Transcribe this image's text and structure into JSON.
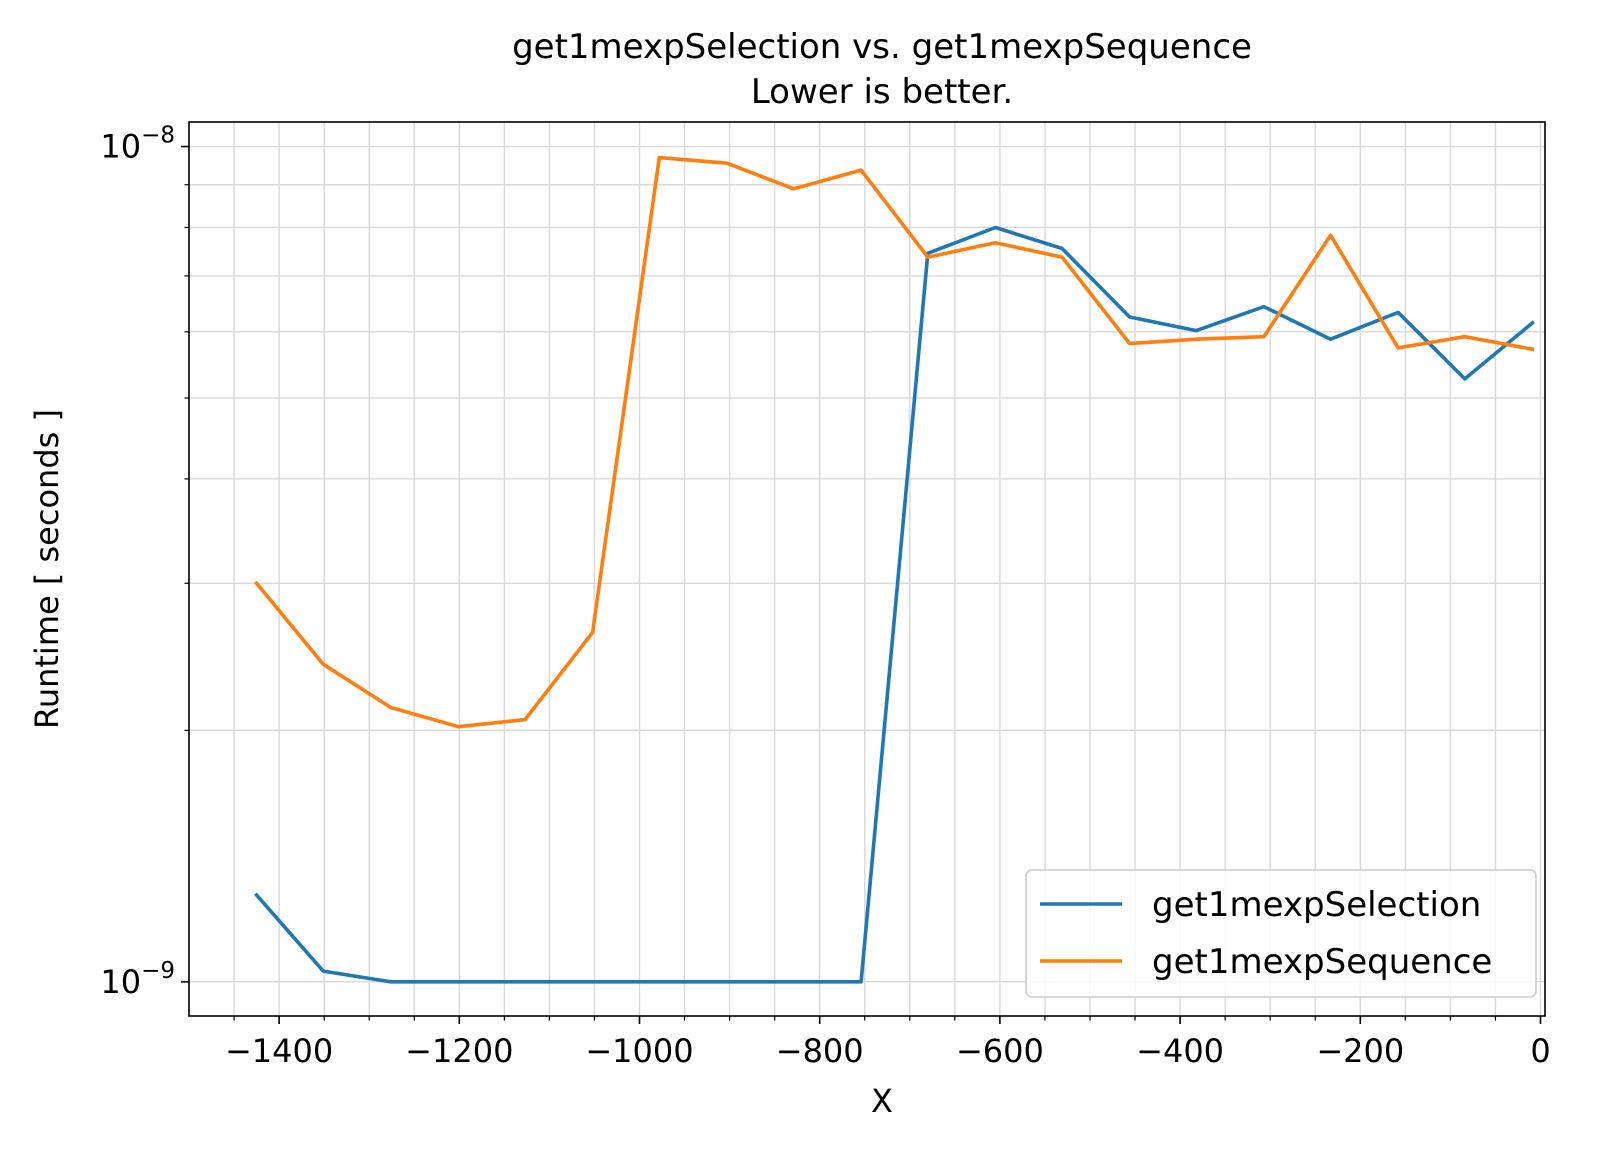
{
  "chart_data": {
    "type": "line",
    "title": "get1mexpSelection vs. get1mexpSequence",
    "subtitle": "Lower is better.",
    "xlabel": "X",
    "ylabel": "Runtime [ seconds ]",
    "xlim": [
      -1500,
      5
    ],
    "ylim": [
      9.1e-10,
      1.07e-08
    ],
    "yscale": "log",
    "grid": true,
    "legend_position": "lower right",
    "x_ticks": [
      -1400,
      -1200,
      -1000,
      -800,
      -600,
      -400,
      -200,
      0
    ],
    "x_tick_labels": [
      "−1400",
      "−1200",
      "−1000",
      "−800",
      "−600",
      "−400",
      "−200",
      "0"
    ],
    "y_ticks": [
      {
        "value": 1e-09,
        "base": "10",
        "exp": "−9"
      },
      {
        "value": 1e-08,
        "base": "10",
        "exp": "−8"
      }
    ],
    "x": [
      -1425,
      -1351,
      -1276,
      -1201,
      -1127,
      -1052,
      -978,
      -903,
      -829,
      -754,
      -680,
      -605,
      -531,
      -456,
      -382,
      -307,
      -233,
      -158,
      -84,
      -9
    ],
    "series": [
      {
        "name": "get1mexpSelection",
        "color": "#1f77b4",
        "values": [
          1.27e-09,
          1.03e-09,
          1e-09,
          1e-09,
          1e-09,
          1e-09,
          1e-09,
          1e-09,
          1e-09,
          1e-09,
          7.45e-09,
          8e-09,
          7.55e-09,
          6.25e-09,
          6.02e-09,
          6.43e-09,
          5.88e-09,
          6.33e-09,
          5.27e-09,
          6.15e-09
        ]
      },
      {
        "name": "get1mexpSequence",
        "color": "#ff7f0e",
        "values": [
          3e-09,
          2.4e-09,
          2.13e-09,
          2.02e-09,
          2.06e-09,
          2.62e-09,
          9.7e-09,
          9.55e-09,
          8.9e-09,
          9.37e-09,
          7.37e-09,
          7.67e-09,
          7.37e-09,
          5.81e-09,
          5.88e-09,
          5.92e-09,
          7.83e-09,
          5.74e-09,
          5.92e-09,
          5.72e-09
        ]
      }
    ]
  }
}
